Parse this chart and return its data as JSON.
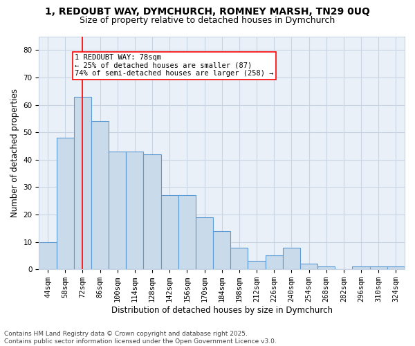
{
  "title_line1": "1, REDOUBT WAY, DYMCHURCH, ROMNEY MARSH, TN29 0UQ",
  "title_line2": "Size of property relative to detached houses in Dymchurch",
  "xlabel": "Distribution of detached houses by size in Dymchurch",
  "ylabel": "Number of detached properties",
  "categories": [
    "44sqm",
    "58sqm",
    "72sqm",
    "86sqm",
    "100sqm",
    "114sqm",
    "128sqm",
    "142sqm",
    "156sqm",
    "170sqm",
    "184sqm",
    "198sqm",
    "212sqm",
    "226sqm",
    "240sqm",
    "254sqm",
    "268sqm",
    "282sqm",
    "296sqm",
    "310sqm",
    "324sqm"
  ],
  "values": [
    10,
    48,
    63,
    54,
    43,
    43,
    42,
    27,
    27,
    19,
    14,
    8,
    3,
    5,
    8,
    2,
    1,
    0,
    1,
    1,
    1
  ],
  "bar_color": "#c9daea",
  "bar_edge_color": "#5b9bd5",
  "bar_edge_width": 0.8,
  "grid_color": "#c8d4e3",
  "bg_color": "#eaf0f8",
  "annotation_line1": "1 REDOUBT WAY: 78sqm",
  "annotation_line2": "← 25% of detached houses are smaller (87)",
  "annotation_line3": "74% of semi-detached houses are larger (258) →",
  "redline_x": 2,
  "ylim": [
    0,
    85
  ],
  "yticks": [
    0,
    10,
    20,
    30,
    40,
    50,
    60,
    70,
    80
  ],
  "footer_line1": "Contains HM Land Registry data © Crown copyright and database right 2025.",
  "footer_line2": "Contains public sector information licensed under the Open Government Licence v3.0.",
  "title_fontsize": 10,
  "subtitle_fontsize": 9,
  "axis_label_fontsize": 8.5,
  "tick_fontsize": 7.5,
  "annotation_fontsize": 7.5,
  "footer_fontsize": 6.5
}
